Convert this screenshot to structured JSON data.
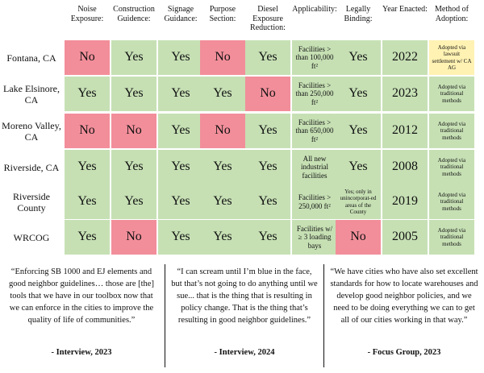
{
  "columns": [
    "Noise Exposure:",
    "Construction Guidence:",
    "Signage Guidance:",
    "Purpose Section:",
    "Diesel Exposure Reduction:",
    "Applicability:",
    "Legally Binding:",
    "Year Enacted:",
    "Method of Adoption:"
  ],
  "rows": [
    {
      "label": "Fontana, CA",
      "noise": "No",
      "construction": "Yes",
      "signage": "Yes",
      "purpose": "No",
      "diesel": "Yes",
      "applicability": "Facilities > than 100,000 ft²",
      "binding": "Yes",
      "year": "2022",
      "adoption": "Adopted via lawsuit settlement w/ CA AG"
    },
    {
      "label": "Lake Elsinore, CA",
      "noise": "Yes",
      "construction": "Yes",
      "signage": "Yes",
      "purpose": "Yes",
      "diesel": "No",
      "applicability": "Facilities > than 250,000 ft²",
      "binding": "Yes",
      "year": "2023",
      "adoption": "Adopted via traditional methods"
    },
    {
      "label": "Moreno Valley, CA",
      "noise": "No",
      "construction": "No",
      "signage": "Yes",
      "purpose": "No",
      "diesel": "Yes",
      "applicability": "Facilities > than 650,000 ft²",
      "binding": "Yes",
      "year": "2012",
      "adoption": "Adopted via traditional methods"
    },
    {
      "label": "Riverside, CA",
      "noise": "Yes",
      "construction": "Yes",
      "signage": "Yes",
      "purpose": "Yes",
      "diesel": "Yes",
      "applicability": "All new industrial facilities",
      "binding": "Yes",
      "year": "2008",
      "adoption": "Adopted via traditional methods"
    },
    {
      "label": "Riverside County",
      "noise": "Yes",
      "construction": "Yes",
      "signage": "Yes",
      "purpose": "Yes",
      "diesel": "Yes",
      "applicability": "Facilities > 250,000 ft²",
      "binding": "Yes; only in unincorporat-ed areas of the County",
      "year": "2019",
      "adoption": "Adopted via traditional methods"
    },
    {
      "label": "WRCOG",
      "noise": "Yes",
      "construction": "No",
      "signage": "Yes",
      "purpose": "Yes",
      "diesel": "Yes",
      "applicability": "Facilities w/ ≥ 3 loading bays",
      "binding": "No",
      "year": "2005",
      "adoption": "Adopted via traditional methods"
    }
  ],
  "quotes": [
    {
      "text": "“Enforcing SB 1000 and EJ elements and good neighbor guidelines… those are [the] tools that we have in our toolbox now that we can enforce in the cities to improve the quality of life of communities.”",
      "source": "- Interview, 2023"
    },
    {
      "text": "“I can scream until I’m blue in the face, but that’s not going to do anything until we sue... that is the thing that is resulting in policy change. That is the thing that’s resulting in good neighbor guidelines.”",
      "source": "- Interview, 2024"
    },
    {
      "text": "“We have cities who have also set excellent standards for how to locate warehouses and develop good neighbor policies, and we need to be doing everything we can to get all of our cities working in that way.”",
      "source": "- Focus Group, 2023"
    }
  ],
  "colors": {
    "yes": "#c6e0b4",
    "no": "#f28e9a",
    "lawsuit": "#fff2b3"
  }
}
